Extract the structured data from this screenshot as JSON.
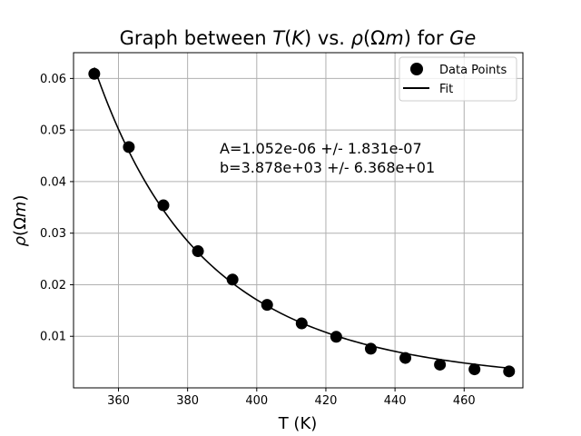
{
  "chart_data": {
    "type": "scatter",
    "title_parts": [
      {
        "text": "Graph between ",
        "italic": false
      },
      {
        "text": "T",
        "italic": true
      },
      {
        "text": "(",
        "italic": false
      },
      {
        "text": "K",
        "italic": true
      },
      {
        "text": ") vs. ",
        "italic": false
      },
      {
        "text": "ρ",
        "italic": true
      },
      {
        "text": "(Ω",
        "italic": false
      },
      {
        "text": "m",
        "italic": true
      },
      {
        "text": ") for ",
        "italic": false
      },
      {
        "text": "Ge",
        "italic": true
      }
    ],
    "xlabel": "T (K)",
    "ylabel_parts": [
      {
        "text": "ρ",
        "italic": true
      },
      {
        "text": "(Ω",
        "italic": false
      },
      {
        "text": "m",
        "italic": true
      },
      {
        "text": ")",
        "italic": false
      }
    ],
    "xlim": [
      347,
      477
    ],
    "ylim": [
      0,
      0.065
    ],
    "xticks": [
      360,
      380,
      400,
      420,
      440,
      460
    ],
    "yticks": [
      0.01,
      0.02,
      0.03,
      0.04,
      0.05,
      0.06
    ],
    "xtick_labels": [
      "360",
      "380",
      "400",
      "420",
      "440",
      "460"
    ],
    "ytick_labels": [
      "0.01",
      "0.02",
      "0.03",
      "0.04",
      "0.05",
      "0.06"
    ],
    "grid": true,
    "legend_position": "top-right",
    "annotation_lines": [
      "A=1.052e-06 +/- 1.831e-07",
      "b=3.878e+03 +/- 6.368e+01"
    ],
    "fit": {
      "A": 1.052e-06,
      "b": 3878,
      "model": "A*exp(b/T)"
    },
    "series": [
      {
        "name": "Data Points",
        "style": "markers",
        "color": "#000000",
        "x": [
          353,
          363,
          373,
          383,
          393,
          403,
          413,
          423,
          433,
          443,
          453,
          463,
          473
        ],
        "y": [
          0.0609,
          0.0467,
          0.0354,
          0.0265,
          0.021,
          0.0161,
          0.0125,
          0.0099,
          0.0076,
          0.0058,
          0.0045,
          0.0036,
          0.0032
        ]
      },
      {
        "name": "Fit",
        "style": "line",
        "color": "#000000"
      }
    ]
  }
}
